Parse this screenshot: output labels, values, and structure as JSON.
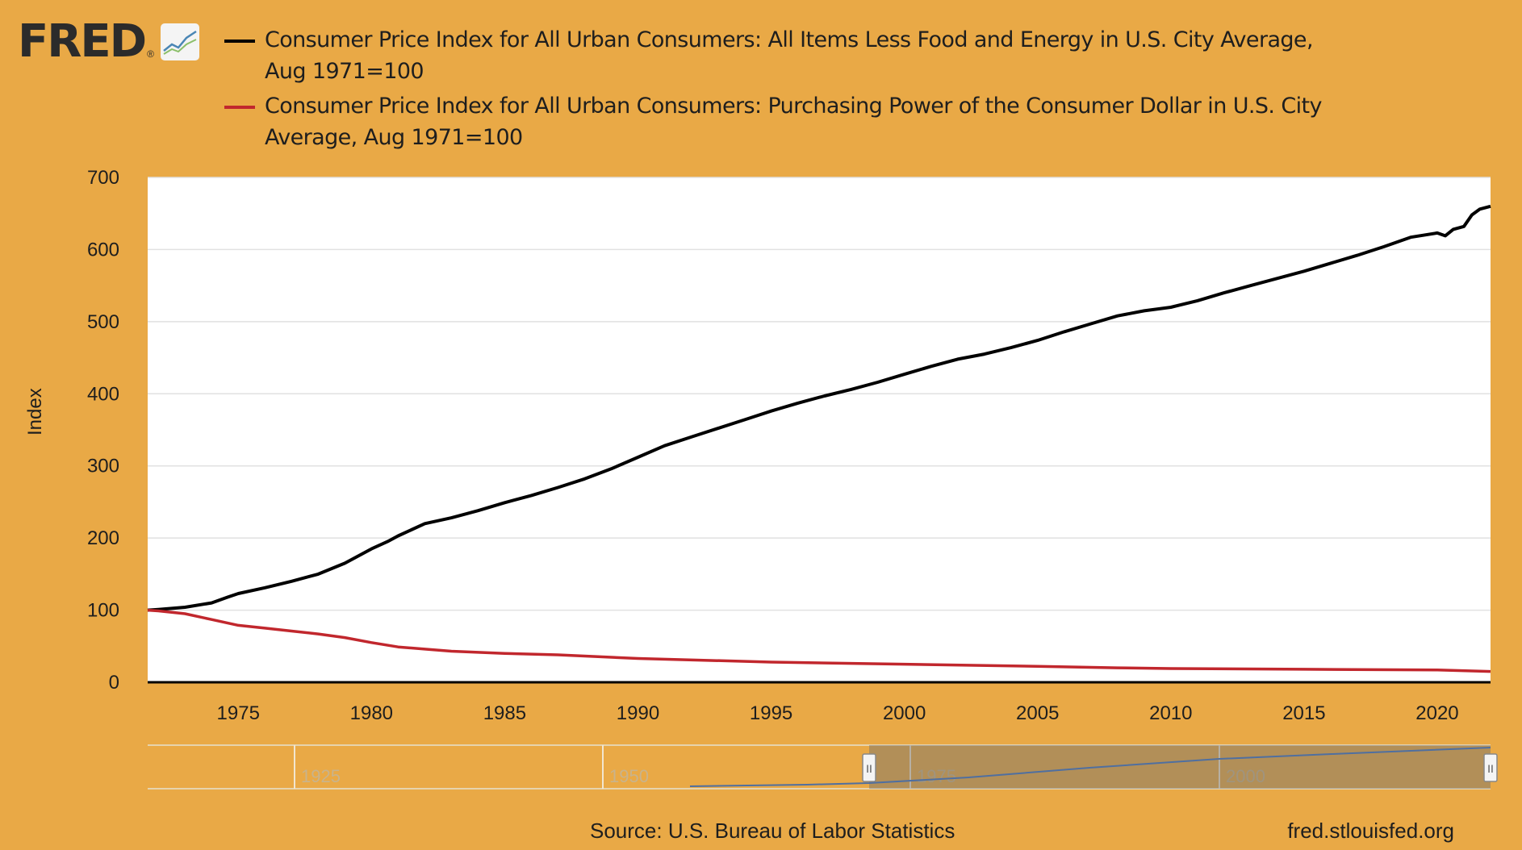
{
  "logo": {
    "text": "FRED",
    "icon": "fred-chart-icon"
  },
  "chart_data": {
    "type": "line",
    "title": "",
    "xlabel": "",
    "ylabel": "Index",
    "xlim": [
      1971.6,
      2022.0
    ],
    "ylim": [
      0,
      700
    ],
    "yticks": [
      0,
      100,
      200,
      300,
      400,
      500,
      600,
      700
    ],
    "xticks": [
      1975,
      1980,
      1985,
      1990,
      1995,
      2000,
      2005,
      2010,
      2015,
      2020
    ],
    "grid": true,
    "legend_position": "top",
    "series": [
      {
        "name": "Consumer Price Index for All Urban Consumers: All Items Less Food and Energy in U.S. City Average, Aug 1971=100",
        "color": "#000000",
        "x": [
          1971.6,
          1972,
          1973,
          1974,
          1974.6,
          1975,
          1976,
          1977,
          1978,
          1979,
          1980,
          1980.6,
          1981,
          1982,
          1983,
          1984,
          1985,
          1986,
          1987,
          1988,
          1989,
          1990,
          1991,
          1992,
          1993,
          1994,
          1995,
          1996,
          1997,
          1998,
          1999,
          2000,
          2001,
          2002,
          2003,
          2004,
          2005,
          2006,
          2007,
          2008,
          2009,
          2010,
          2011,
          2012,
          2013,
          2014,
          2015,
          2016,
          2017,
          2018,
          2019,
          2020,
          2020.3,
          2020.6,
          2021,
          2021.3,
          2021.6,
          2022.0
        ],
        "values": [
          100,
          101,
          104,
          110,
          118,
          123,
          131,
          140,
          150,
          165,
          185,
          195,
          203,
          220,
          228,
          238,
          249,
          259,
          270,
          282,
          296,
          312,
          328,
          340,
          352,
          364,
          376,
          387,
          397,
          406,
          416,
          427,
          438,
          448,
          455,
          464,
          474,
          486,
          497,
          508,
          515,
          520,
          529,
          540,
          550,
          560,
          570,
          581,
          592,
          604,
          617,
          623,
          619,
          628,
          632,
          648,
          656,
          660
        ]
      },
      {
        "name": "Consumer Price Index for All Urban Consumers: Purchasing Power of the Consumer Dollar in U.S. City Average, Aug 1971=100",
        "color": "#C1272D",
        "x": [
          1971.6,
          1972,
          1973,
          1974,
          1975,
          1976,
          1977,
          1978,
          1979,
          1980,
          1981,
          1982,
          1983,
          1985,
          1987,
          1990,
          1995,
          2000,
          2005,
          2008,
          2010,
          2015,
          2020,
          2022.0
        ],
        "values": [
          100,
          99,
          95,
          87,
          79,
          75,
          71,
          67,
          62,
          55,
          49,
          46,
          43,
          40,
          38,
          33,
          28,
          25,
          22,
          20,
          19,
          18,
          17,
          15
        ]
      }
    ]
  },
  "navigator": {
    "labels": [
      "1925",
      "1950",
      "1975",
      "2000"
    ],
    "handle_left": "II",
    "handle_right": "II"
  },
  "footer": {
    "source": "Source: U.S. Bureau of Labor Statistics",
    "site": "fred.stlouisfed.org"
  }
}
